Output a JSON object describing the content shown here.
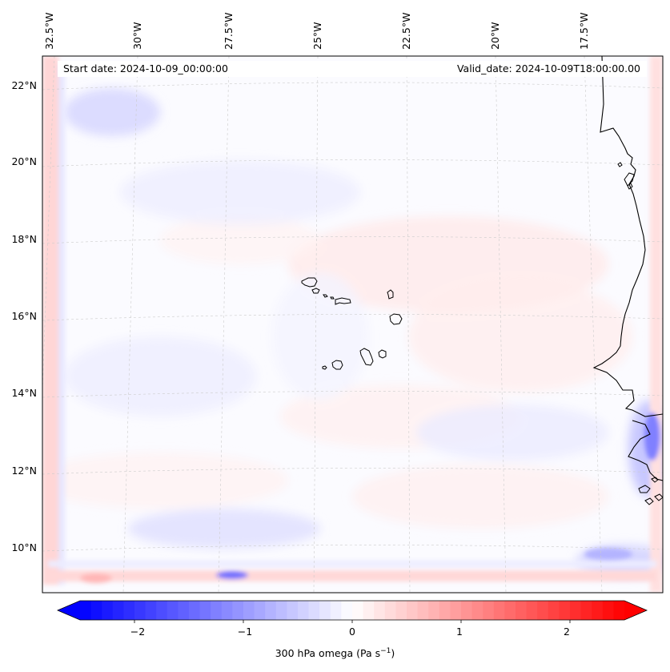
{
  "map": {
    "header": {
      "start_date": "Start date: 2024-10-09_00:00:00",
      "valid_date": "Valid_date: 2024-10-09T18:00:00.00"
    },
    "lon_labels": [
      "32.5°W",
      "30°W",
      "27.5°W",
      "25°W",
      "22.5°W",
      "20°W",
      "17.5°W"
    ],
    "lat_labels": [
      "22°N",
      "20°N",
      "18°N",
      "16°N",
      "14°N",
      "12°N",
      "10°N"
    ],
    "lon_values": [
      -32.5,
      -30,
      -27.5,
      -25,
      -22.5,
      -20,
      -17.5
    ],
    "lat_values": [
      22,
      20,
      18,
      16,
      14,
      12,
      10
    ],
    "variable": "300 hPa omega",
    "islands": [
      "Santo Antão",
      "São Vicente",
      "Santa Luzia",
      "São Nicolau",
      "Sal",
      "Boa Vista",
      "Maio",
      "Santiago",
      "Fogo",
      "Brava"
    ]
  },
  "colorbar": {
    "label_text": "300 hPa omega (Pa s",
    "label_sup": "−1",
    "label_close": ")",
    "ticks": [
      "−2",
      "−1",
      "0",
      "1",
      "2"
    ],
    "tick_values": [
      -2,
      -1,
      0,
      1,
      2
    ],
    "range": [
      -2.5,
      2.5
    ],
    "colors": {
      "low": "#0000ff",
      "mid": "#ffffff",
      "high": "#ff0000"
    }
  }
}
